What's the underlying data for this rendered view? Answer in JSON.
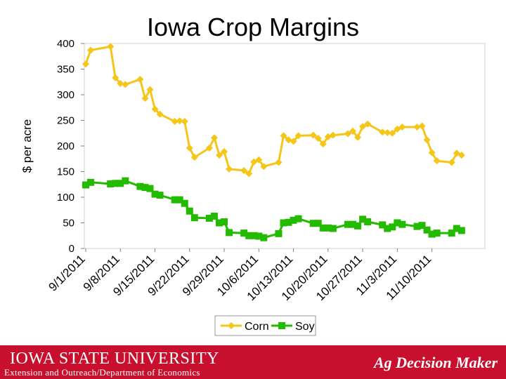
{
  "chart_data": {
    "type": "line",
    "title": "Iowa Crop Margins",
    "xlabel": "",
    "ylabel": "$ per acre",
    "ylim": [
      0,
      400
    ],
    "yticks": [
      0,
      50,
      100,
      150,
      200,
      250,
      300,
      350,
      400
    ],
    "xlim": [
      0,
      81
    ],
    "x_tick_labels": [
      {
        "day": 0,
        "label": "9/1/2011"
      },
      {
        "day": 7,
        "label": "9/8/2011"
      },
      {
        "day": 14,
        "label": "9/15/2011"
      },
      {
        "day": 21,
        "label": "9/22/2011"
      },
      {
        "day": 28,
        "label": "9/29/2011"
      },
      {
        "day": 35,
        "label": "10/6/2011"
      },
      {
        "day": 42,
        "label": "10/13/2011"
      },
      {
        "day": 49,
        "label": "10/20/2011"
      },
      {
        "day": 56,
        "label": "10/27/2011"
      },
      {
        "day": 63,
        "label": "11/3/2011"
      },
      {
        "day": 70,
        "label": "11/10/2011"
      }
    ],
    "x_unit": "days since 9/1/2011",
    "series": [
      {
        "name": "Corn",
        "color": "#f5c518",
        "marker": "diamond",
        "points": [
          [
            0,
            360
          ],
          [
            1,
            387
          ],
          [
            5,
            394
          ],
          [
            6,
            333
          ],
          [
            7,
            322
          ],
          [
            8,
            320
          ],
          [
            11,
            330
          ],
          [
            12,
            293
          ],
          [
            13,
            310
          ],
          [
            14,
            272
          ],
          [
            15,
            262
          ],
          [
            18,
            248
          ],
          [
            19,
            249
          ],
          [
            20,
            248
          ],
          [
            21,
            196
          ],
          [
            22,
            178
          ],
          [
            25,
            196
          ],
          [
            26,
            216
          ],
          [
            27,
            182
          ],
          [
            28,
            189
          ],
          [
            29,
            155
          ],
          [
            32,
            152
          ],
          [
            33,
            146
          ],
          [
            34,
            169
          ],
          [
            35,
            173
          ],
          [
            36,
            160
          ],
          [
            39,
            168
          ],
          [
            40,
            220
          ],
          [
            41,
            212
          ],
          [
            42,
            209
          ],
          [
            43,
            220
          ],
          [
            46,
            221
          ],
          [
            47,
            215
          ],
          [
            48,
            204
          ],
          [
            49,
            218
          ],
          [
            50,
            221
          ],
          [
            53,
            224
          ],
          [
            54,
            229
          ],
          [
            55,
            217
          ],
          [
            56,
            238
          ],
          [
            57,
            243
          ],
          [
            60,
            227
          ],
          [
            61,
            226
          ],
          [
            62,
            225
          ],
          [
            63,
            233
          ],
          [
            64,
            237
          ],
          [
            67,
            237
          ],
          [
            68,
            239
          ],
          [
            69,
            212
          ],
          [
            70,
            187
          ],
          [
            71,
            171
          ],
          [
            74,
            168
          ],
          [
            75,
            186
          ],
          [
            76,
            182
          ]
        ]
      },
      {
        "name": "Soy",
        "color": "#22bb00",
        "marker": "square",
        "points": [
          [
            0,
            124
          ],
          [
            1,
            129
          ],
          [
            5,
            126
          ],
          [
            6,
            127
          ],
          [
            7,
            127
          ],
          [
            8,
            132
          ],
          [
            11,
            121
          ],
          [
            12,
            119
          ],
          [
            13,
            117
          ],
          [
            14,
            106
          ],
          [
            15,
            104
          ],
          [
            18,
            95
          ],
          [
            19,
            95
          ],
          [
            20,
            88
          ],
          [
            21,
            73
          ],
          [
            22,
            60
          ],
          [
            25,
            59
          ],
          [
            26,
            63
          ],
          [
            27,
            50
          ],
          [
            28,
            52
          ],
          [
            29,
            31
          ],
          [
            32,
            30
          ],
          [
            33,
            25
          ],
          [
            34,
            25
          ],
          [
            35,
            24
          ],
          [
            36,
            21
          ],
          [
            39,
            29
          ],
          [
            40,
            50
          ],
          [
            41,
            51
          ],
          [
            42,
            55
          ],
          [
            43,
            58
          ],
          [
            46,
            49
          ],
          [
            47,
            49
          ],
          [
            48,
            40
          ],
          [
            49,
            40
          ],
          [
            50,
            39
          ],
          [
            53,
            47
          ],
          [
            54,
            47
          ],
          [
            55,
            44
          ],
          [
            56,
            57
          ],
          [
            57,
            52
          ],
          [
            60,
            46
          ],
          [
            61,
            39
          ],
          [
            62,
            42
          ],
          [
            63,
            50
          ],
          [
            64,
            47
          ],
          [
            67,
            43
          ],
          [
            68,
            45
          ],
          [
            69,
            36
          ],
          [
            70,
            28
          ],
          [
            71,
            30
          ],
          [
            74,
            30
          ],
          [
            75,
            39
          ],
          [
            76,
            35
          ]
        ]
      }
    ],
    "legend": [
      "Corn",
      "Soy"
    ],
    "legend_position": "bottom"
  },
  "footer": {
    "institution": "IOWA STATE UNIVERSITY",
    "department": "Extension and Outreach/Department of Economics",
    "brand": "Ag Decision Maker"
  }
}
